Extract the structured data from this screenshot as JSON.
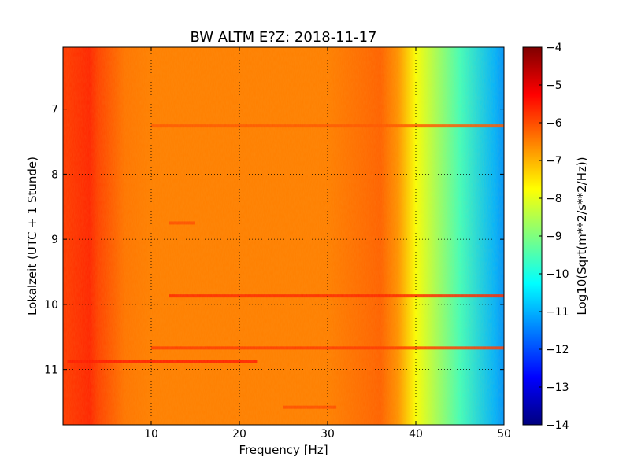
{
  "chart_data": {
    "type": "heatmap",
    "title": "BW ALTM E?Z: 2018-11-17",
    "xlabel": "Frequency [Hz]",
    "ylabel": "Lokalzeit (UTC + 1 Stunde)",
    "xlim": [
      0,
      50
    ],
    "ylim": [
      11.85,
      6.05
    ],
    "x_ticks": [
      10,
      20,
      30,
      40,
      50
    ],
    "y_ticks": [
      7,
      8,
      9,
      10,
      11
    ],
    "grid": true,
    "colorbar": {
      "label": "Log10(Sqrt(m**2/s**2/Hz))",
      "range": [
        -14,
        -4
      ],
      "ticks": [
        -4,
        -5,
        -6,
        -7,
        -8,
        -9,
        -10,
        -11,
        -12,
        -13,
        -14
      ],
      "colormap": "jet"
    },
    "spectrum_profile": {
      "x": [
        0.5,
        3,
        4,
        7,
        10,
        20,
        30,
        36,
        38,
        40,
        45,
        49,
        50
      ],
      "values": [
        -5.8,
        -5.6,
        -5.9,
        -6.4,
        -6.5,
        -6.5,
        -6.5,
        -6.2,
        -6.7,
        -7.8,
        -9.6,
        -11.0,
        -11.3
      ]
    },
    "bands": [
      {
        "y": 7.26,
        "x": [
          10,
          50
        ],
        "value": -6.1
      },
      {
        "y": 9.87,
        "x": [
          12,
          50
        ],
        "value": -5.6
      },
      {
        "y": 10.67,
        "x": [
          10,
          50
        ],
        "value": -5.8
      },
      {
        "y": 10.88,
        "x": [
          0.5,
          22
        ],
        "value": -5.5
      },
      {
        "y": 8.75,
        "x": [
          12,
          15
        ],
        "value": -6.0
      },
      {
        "y": 11.58,
        "x": [
          25,
          31
        ],
        "value": -6.0
      }
    ],
    "colors": {
      "jet": [
        "#00007f",
        "#0000ff",
        "#007fff",
        "#00ffff",
        "#7fff7f",
        "#ffff00",
        "#ff7f00",
        "#ff0000",
        "#7f0000"
      ]
    }
  }
}
